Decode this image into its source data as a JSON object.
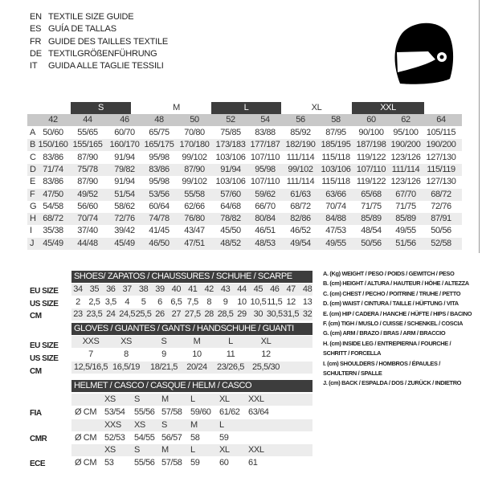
{
  "titles": [
    {
      "lang": "EN",
      "text": "TEXTILE SIZE GUIDE"
    },
    {
      "lang": "ES",
      "text": "GUÍA DE TALLAS"
    },
    {
      "lang": "FR",
      "text": "GUIDE DES TAILLES TEXTILE"
    },
    {
      "lang": "DE",
      "text": "TEXTILGRÖßENFÜHRUNG"
    },
    {
      "lang": "IT",
      "text": "GUIDA ALLE TAGLIE TESSILI"
    }
  ],
  "logo_icon": "helmet-icon",
  "textile": {
    "size_groups": [
      {
        "label": "S",
        "dark": true
      },
      {
        "label": "M",
        "dark": false
      },
      {
        "label": "L",
        "dark": true
      },
      {
        "label": "XL",
        "dark": false
      },
      {
        "label": "XXL",
        "dark": true
      }
    ],
    "columns": [
      "42",
      "44",
      "46",
      "48",
      "50",
      "52",
      "54",
      "56",
      "58",
      "60",
      "62",
      "64"
    ],
    "rows": [
      {
        "letter": "A",
        "values": [
          "50/60",
          "55/65",
          "60/70",
          "65/75",
          "70/80",
          "75/85",
          "83/88",
          "85/92",
          "87/95",
          "90/100",
          "95/100",
          "105/115"
        ]
      },
      {
        "letter": "B",
        "values": [
          "150/160",
          "155/165",
          "160/170",
          "165/175",
          "170/180",
          "173/183",
          "177/187",
          "182/190",
          "185/195",
          "187/198",
          "190/200",
          "190/200"
        ]
      },
      {
        "letter": "C",
        "values": [
          "83/86",
          "87/90",
          "91/94",
          "95/98",
          "99/102",
          "103/106",
          "107/110",
          "111/114",
          "115/118",
          "119/122",
          "123/126",
          "127/130"
        ]
      },
      {
        "letter": "D",
        "values": [
          "71/74",
          "75/78",
          "79/82",
          "83/86",
          "87/90",
          "91/94",
          "95/98",
          "99/102",
          "103/106",
          "107/110",
          "111/114",
          "115/119"
        ]
      },
      {
        "letter": "E",
        "values": [
          "83/86",
          "87/90",
          "91/94",
          "95/98",
          "99/102",
          "103/106",
          "107/110",
          "111/114",
          "115/118",
          "119/122",
          "123/126",
          "127/130"
        ]
      },
      {
        "letter": "F",
        "values": [
          "47/50",
          "49/52",
          "51/54",
          "53/56",
          "55/58",
          "57/60",
          "59/62",
          "61/63",
          "63/66",
          "65/68",
          "67/70",
          "68/72"
        ]
      },
      {
        "letter": "G",
        "values": [
          "54/58",
          "56/60",
          "58/62",
          "60/64",
          "62/66",
          "64/68",
          "66/70",
          "68/72",
          "70/74",
          "71/75",
          "71/75",
          "72/76"
        ]
      },
      {
        "letter": "H",
        "values": [
          "68/72",
          "70/74",
          "72/76",
          "74/78",
          "76/80",
          "78/82",
          "80/84",
          "82/86",
          "84/88",
          "85/89",
          "85/89",
          "87/91"
        ]
      },
      {
        "letter": "I",
        "values": [
          "35/38",
          "37/40",
          "39/42",
          "41/45",
          "43/47",
          "45/50",
          "46/51",
          "46/52",
          "47/53",
          "48/54",
          "49/55",
          "50/56"
        ]
      },
      {
        "letter": "J",
        "values": [
          "45/49",
          "44/48",
          "45/49",
          "46/50",
          "47/51",
          "48/52",
          "48/53",
          "49/54",
          "49/55",
          "50/56",
          "51/56",
          "52/58"
        ]
      }
    ]
  },
  "shoes": {
    "header": "SHOES/ ZAPATOS / CHAUSSURES / SCHUHE / SCARPE",
    "rows": [
      {
        "label": "EU SIZE",
        "values": [
          "34",
          "35",
          "36",
          "37",
          "38",
          "39",
          "40",
          "41",
          "42",
          "43",
          "44",
          "45",
          "46",
          "47",
          "48"
        ]
      },
      {
        "label": "US SIZE",
        "values": [
          "2",
          "2,5",
          "3,5",
          "4",
          "5",
          "6",
          "6,5",
          "7,5",
          "8",
          "9",
          "10",
          "10,5",
          "11,5",
          "12",
          "13"
        ]
      },
      {
        "label": "CM",
        "values": [
          "23",
          "23,5",
          "24",
          "24,5",
          "25,5",
          "26",
          "27",
          "27,5",
          "28",
          "28,5",
          "29",
          "30",
          "30,5",
          "31,5",
          "32"
        ]
      }
    ]
  },
  "gloves": {
    "header": "GLOVES / GUANTES / GANTS / HANDSCHUHE / GUANTI",
    "rows": [
      {
        "label": "EU SIZE",
        "values": [
          "XXS",
          "XS",
          "S",
          "M",
          "L",
          "XL"
        ]
      },
      {
        "label": "US SIZE",
        "values": [
          "7",
          "8",
          "9",
          "10",
          "11",
          "12"
        ]
      },
      {
        "label": "CM",
        "values": [
          "12,5/16,5",
          "16,5/19",
          "18/21,5",
          "20/24",
          "23/26,5",
          "25,5/30"
        ]
      }
    ]
  },
  "helmet": {
    "header": "HELMET / CASCO / CASQUE / HELM / CASCO",
    "unit": "Ø CM",
    "standards": [
      {
        "label": "FIA",
        "sizes": [
          "XS",
          "S",
          "M",
          "L",
          "XL",
          "XXL"
        ],
        "values": [
          "53/54",
          "55/56",
          "57/58",
          "59/60",
          "61/62",
          "63/64"
        ]
      },
      {
        "label": "CMR",
        "sizes": [
          "XXS",
          "XS",
          "S",
          "M",
          "L"
        ],
        "values": [
          "52/53",
          "54/55",
          "56/57",
          "58",
          "59"
        ]
      },
      {
        "label": "ECE",
        "sizes": [
          "XS",
          "S",
          "M",
          "L",
          "XL",
          "XXL"
        ],
        "values": [
          "53",
          "55/56",
          "57/58",
          "59",
          "60",
          "61"
        ]
      }
    ]
  },
  "legend": [
    "A. (Kg) WEIGHT / PESO / POIDS / GEWITCH / PESO",
    "B. (cm) HEIGHT / ALTURA / HAUTEUR / HÖHE / ALTEZZA",
    "C. (cm) CHEST / PECHO / POITRINE / TRUHE / PETTO",
    "D. (cm) WAIST / CINTURA / TAILLE / HÜFTUNG / VITA",
    "E. (cm) HIP / CADERA / HANCHE / HÜFTE / HIPS /  BACINO",
    "F.  (cm) TIGH / MUSLO / CUISSE / SCHENKEL / COSCIA",
    "G. (cm) ARM  / BRAZO / BRAS / ARM / BRACCIO",
    "H. (cm) INSIDE LEG / ENTREPIERNA / FOURCHE /",
    "SCHRITT / FORCELLA",
    "I.  (cm) SHOULDERS / HOMBROS / ÉPAULES /",
    "SCHULTERN / SPALLE",
    "J. (cm) BACK / ESPALDA / DOS / ZURÜCK / INDIETRO"
  ],
  "colors": {
    "dark": "#3d3d3d",
    "header_grey": "#c8c8c8",
    "row_shade": "#ececec"
  }
}
